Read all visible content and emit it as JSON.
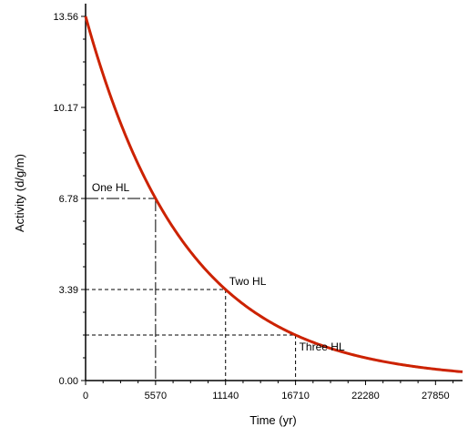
{
  "chart_data": {
    "type": "line",
    "xlabel": "Time (yr)",
    "ylabel": "Activity (d/g/m)",
    "xlim": [
      0,
      30000
    ],
    "ylim": [
      0,
      13.56
    ],
    "x_ticks": [
      "0",
      "5570",
      "11140",
      "16710",
      "22280",
      "27850"
    ],
    "x_tick_values": [
      0,
      5570,
      11140,
      16710,
      22280,
      27850
    ],
    "y_ticks": [
      "0.00",
      "3.39",
      "6.78",
      "10.17",
      "13.56"
    ],
    "y_tick_values": [
      0,
      3.39,
      6.78,
      10.17,
      13.56
    ],
    "series": [
      {
        "color": "#cc2200",
        "initial_value": 13.56,
        "half_life": 5570,
        "x_start": 0,
        "x_end": 30000
      }
    ],
    "annotations": [
      {
        "label": "One HL",
        "x": 5570,
        "y": 6.78
      },
      {
        "label": "Two HL",
        "x": 11140,
        "y": 3.39
      },
      {
        "label": "Three HL",
        "x": 16710,
        "y": 1.695
      }
    ],
    "grid": false
  }
}
